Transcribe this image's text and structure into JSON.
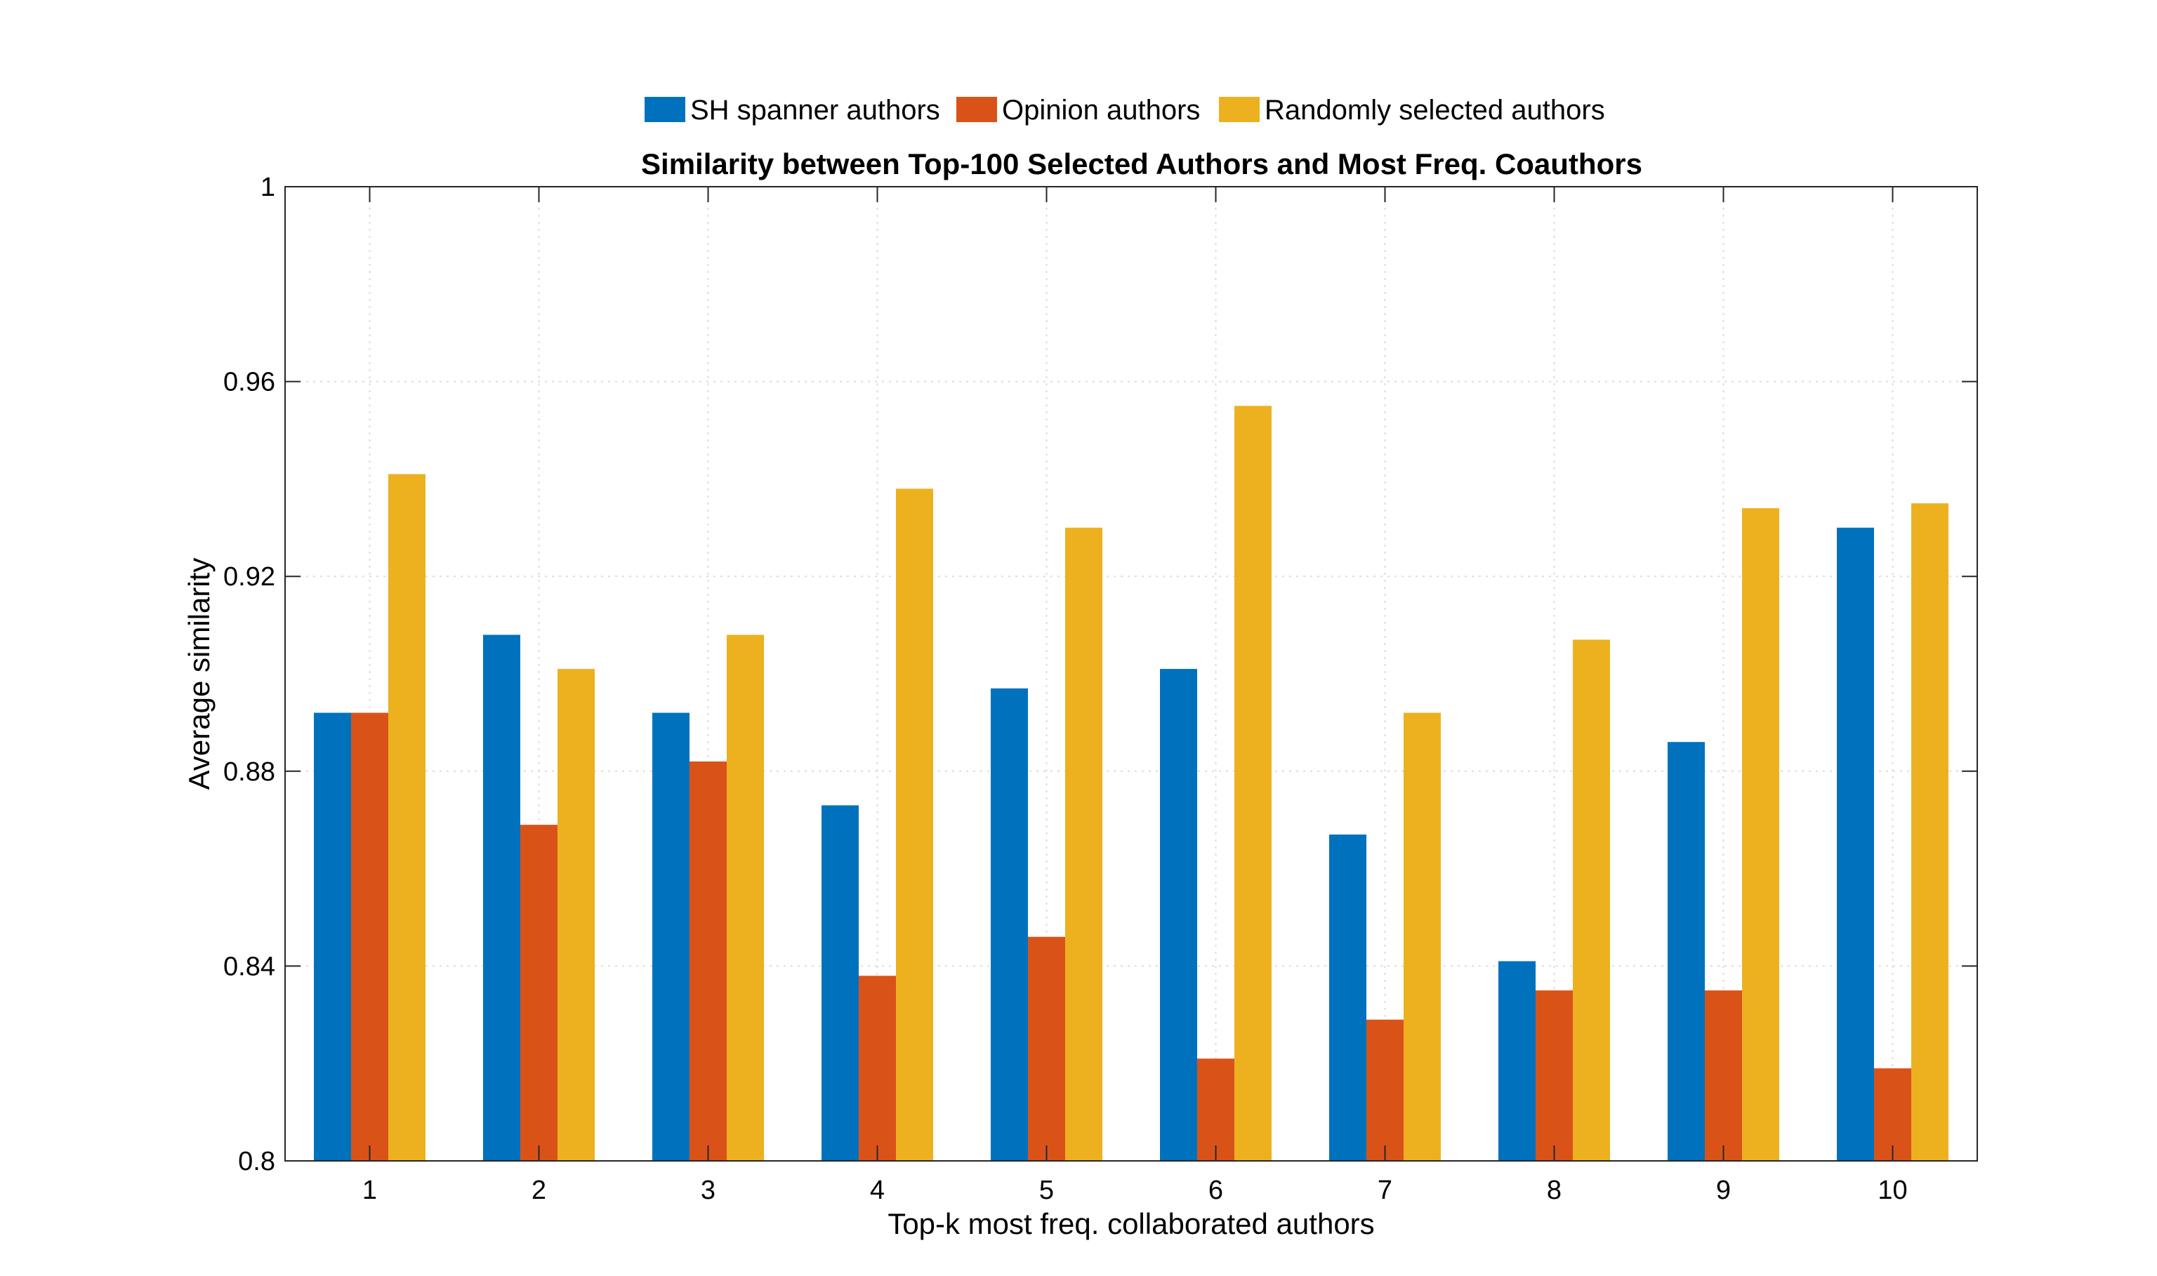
{
  "chart_data": {
    "type": "bar",
    "title": "Similarity between Top-100 Selected Authors and Most Freq. Coauthors",
    "xlabel": "Top-k most freq. collaborated authors",
    "ylabel": "Average similarity",
    "categories": [
      "1",
      "2",
      "3",
      "4",
      "5",
      "6",
      "7",
      "8",
      "9",
      "10"
    ],
    "ylim": [
      0.8,
      1
    ],
    "yticks": [
      "0.8",
      "0.84",
      "0.88",
      "0.92",
      "0.96",
      "1"
    ],
    "ytick_values": [
      0.8,
      0.84,
      0.88,
      0.92,
      0.96,
      1.0
    ],
    "grid": true,
    "legend_position": "top-center",
    "series": [
      {
        "name": "SH spanner authors",
        "color": "#0072BD",
        "values": [
          0.892,
          0.908,
          0.892,
          0.873,
          0.897,
          0.901,
          0.867,
          0.841,
          0.886,
          0.93
        ]
      },
      {
        "name": "Opinion authors",
        "color": "#D95319",
        "values": [
          0.892,
          0.869,
          0.882,
          0.838,
          0.846,
          0.821,
          0.829,
          0.835,
          0.835,
          0.819
        ]
      },
      {
        "name": "Randomly selected authors",
        "color": "#EDB120",
        "values": [
          0.941,
          0.901,
          0.908,
          0.938,
          0.93,
          0.955,
          0.892,
          0.907,
          0.934,
          0.935
        ]
      }
    ]
  }
}
